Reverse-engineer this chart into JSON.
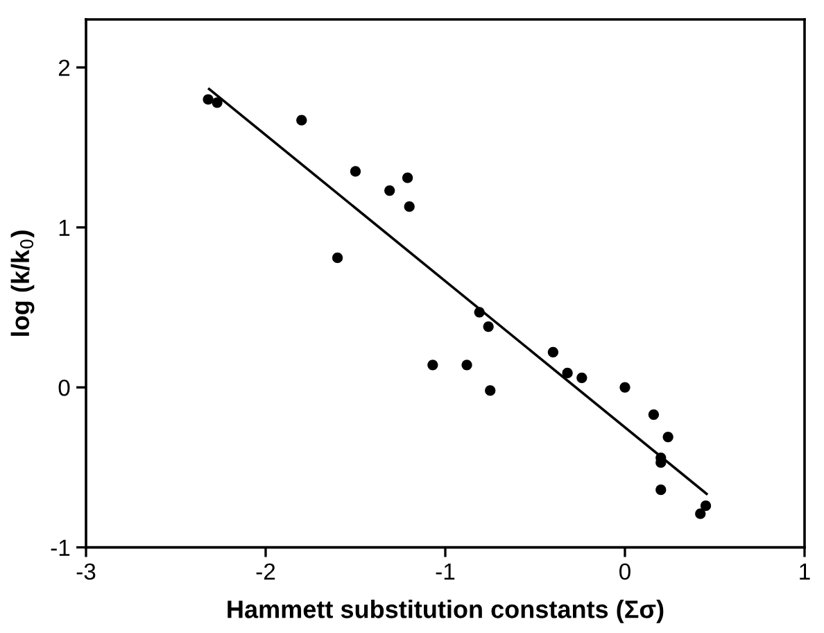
{
  "chart_data": {
    "type": "scatter",
    "xlabel": "Hammett substitution constants (Σσ)",
    "ylabel": "log (k/k$_{0}$)",
    "xlim": [
      -3,
      1
    ],
    "xticks": [
      -3,
      -2,
      -1,
      0,
      1
    ],
    "ylim": [
      -1,
      2.3
    ],
    "yticks": [
      -1,
      0,
      1,
      2
    ],
    "grid": false,
    "series": [
      {
        "color": "#000000",
        "marker": "circle",
        "x": [
          -2.32,
          -2.27,
          -1.8,
          -1.6,
          -1.5,
          -1.31,
          -1.21,
          -1.2,
          -1.07,
          -0.88,
          -0.81,
          -0.76,
          -0.75,
          -0.4,
          -0.32,
          -0.24,
          0.0,
          0.16,
          0.24,
          0.2,
          0.2,
          0.2,
          0.42,
          0.45
        ],
        "values": [
          1.8,
          1.78,
          1.67,
          0.81,
          1.35,
          1.23,
          1.31,
          1.13,
          0.14,
          0.14,
          0.47,
          0.38,
          -0.02,
          0.22,
          0.09,
          0.06,
          0.0,
          -0.17,
          -0.31,
          -0.44,
          -0.47,
          -0.64,
          -0.79,
          -0.74
        ]
      },
      {
        "type": "line",
        "color": "#000000",
        "marker": "none",
        "line_style": "solid",
        "x": [
          -2.32,
          0.46
        ],
        "values": [
          1.87,
          -0.67
        ]
      }
    ]
  }
}
